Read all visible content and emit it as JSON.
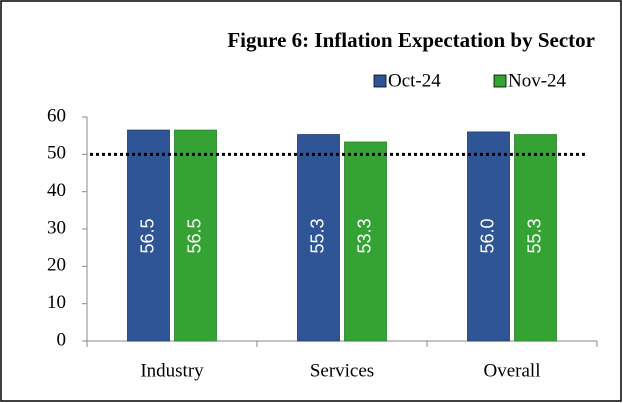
{
  "chart_data": {
    "type": "bar",
    "title": "Figure 6: Inflation Expectation by Sector",
    "categories": [
      "Industry",
      "Services",
      "Overall"
    ],
    "series": [
      {
        "name": "Oct-24",
        "color": "#2f5597",
        "values": [
          56.5,
          55.3,
          56.0
        ],
        "value_labels": [
          "56.5",
          "55.3",
          "56.0"
        ]
      },
      {
        "name": "Nov-24",
        "color": "#34a334",
        "values": [
          56.5,
          53.3,
          55.3
        ],
        "value_labels": [
          "56.5",
          "53.3",
          "55.3"
        ]
      }
    ],
    "reference_line": 50,
    "ylim": [
      0,
      60
    ],
    "yticks": [
      0,
      10,
      20,
      30,
      40,
      50,
      60
    ],
    "legend": "top-right"
  }
}
